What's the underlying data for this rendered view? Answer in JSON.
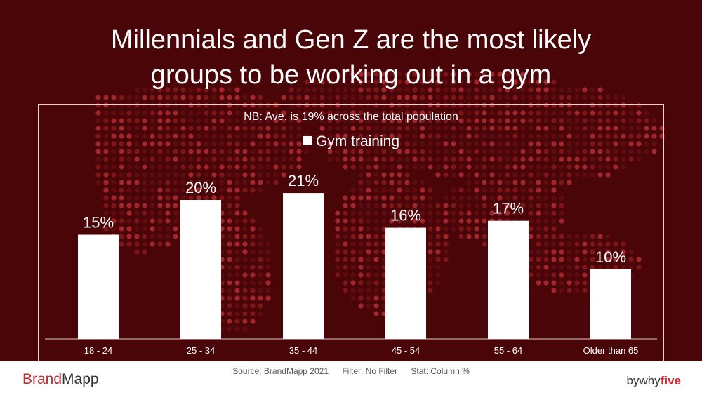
{
  "title_lines": [
    "Millennials and Gen Z are the most likely",
    "groups to be working out in a gym"
  ],
  "note": "NB: Ave. is 19% across the total population",
  "footer": {
    "brand_left": "Brand",
    "brand_right": "Mapp",
    "source": "Source: BrandMapp 2021",
    "filter": "Filter: No Filter",
    "stat": "Stat: Column %",
    "byline_prefix": "bywhy",
    "byline_suffix": "five"
  },
  "colors": {
    "background": "#4a0509",
    "bars": "#ffffff",
    "brand_red": "#c22a2f"
  },
  "chart_data": {
    "type": "bar",
    "categories": [
      "18 - 24",
      "25 - 34",
      "35 - 44",
      "45 - 54",
      "55 - 64",
      "Older than 65"
    ],
    "series": [
      {
        "name": "Gym training",
        "values": [
          15,
          20,
          21,
          16,
          17,
          10
        ]
      }
    ],
    "data_labels": [
      "15%",
      "20%",
      "21%",
      "16%",
      "17%",
      "10%"
    ],
    "legend_position": "top-center",
    "ylim": [
      0,
      30
    ],
    "grid": false
  }
}
